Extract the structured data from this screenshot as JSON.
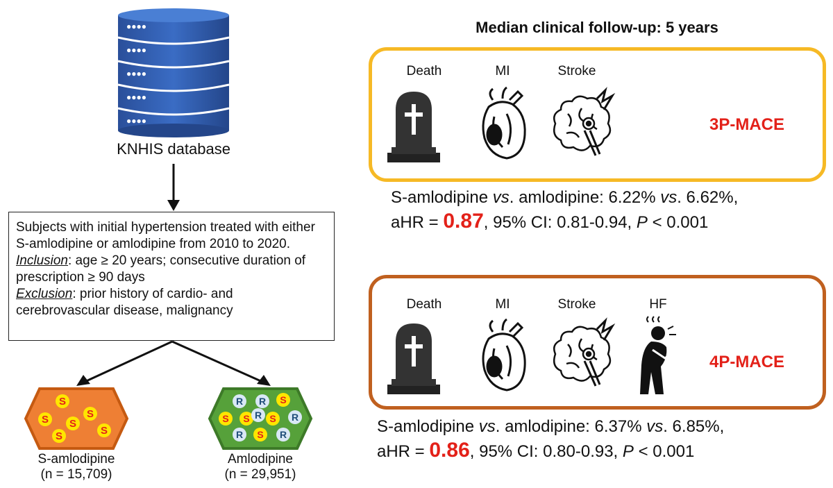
{
  "database": {
    "label": "KNHIS database",
    "dots": "●●●●"
  },
  "criteria": {
    "intro": "Subjects with initial hypertension treated with either S-amlodipine or amlodipine from 2010 to 2020.",
    "inclusion_term": "Inclusion",
    "inclusion_text": ": age ≥ 20 years; consecutive duration of prescription ≥ 90 days",
    "exclusion_term": "Exclusion",
    "exclusion_text": ": prior history of cardio- and cerebrovascular disease, malignancy"
  },
  "groups": [
    {
      "name": "S-amlodipine",
      "n": "(n = 15,709)",
      "pill_letters": "S",
      "color": "#ee7f34",
      "border": "#c55a11"
    },
    {
      "name": "Amlodipine",
      "n": "(n = 29,951)",
      "pill_letters": "R",
      "color": "#56a13a",
      "border": "#3d7a28"
    }
  ],
  "followup_title": "Median clinical follow-up: 5 years",
  "panels": [
    {
      "id": "3p",
      "icons": [
        "Death",
        "MI",
        "Stroke"
      ],
      "label": "3P-MACE",
      "result": {
        "line1_a": "S-amlodipine ",
        "line1_vs1": "vs",
        "line1_b": ". amlodipine: 6.22% ",
        "line1_vs2": "vs",
        "line1_c": ". 6.62%,",
        "line2_a": "aHR = ",
        "hr": "0.87",
        "line2_b": ", 95% CI: 0.81-0.94, ",
        "p": "P",
        "line2_c": " < 0.001"
      }
    },
    {
      "id": "4p",
      "icons": [
        "Death",
        "MI",
        "Stroke",
        "HF"
      ],
      "label": "4P-MACE",
      "result": {
        "line1_a": "S-amlodipine ",
        "line1_vs1": "vs",
        "line1_b": ". amlodipine: 6.37% ",
        "line1_vs2": "vs",
        "line1_c": ". 6.85%,",
        "line2_a": "aHR = ",
        "hr": "0.86",
        "line2_b": ", 95% CI: 0.80-0.93, ",
        "p": "P",
        "line2_c": " < 0.001"
      }
    }
  ],
  "colors": {
    "accent_red": "#e32119",
    "panel_3p": "#f6b925",
    "panel_4p": "#c0601f",
    "db_blue": "#2e5aa8"
  }
}
